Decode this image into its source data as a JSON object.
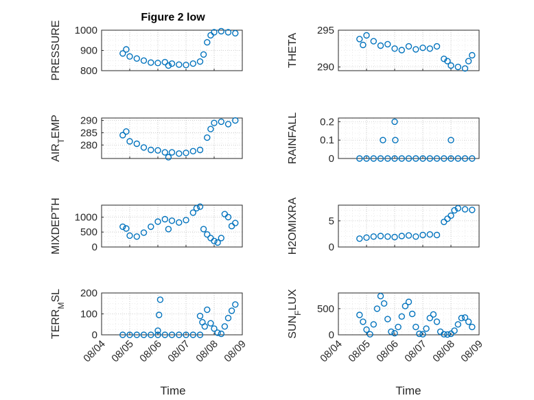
{
  "figure": {
    "title": "Figure 2 low",
    "marker_color": "#0072BD",
    "x_axis_label": "Time"
  },
  "chart_data": [
    {
      "type": "scatter",
      "name": "PRESSURE",
      "ylabel": "PRESSURE",
      "ylim": [
        800,
        1000
      ],
      "yticks": [
        800,
        900,
        1000
      ],
      "xlim": [
        "08/04",
        "08/09"
      ],
      "xticks": [
        "08/04",
        "08/05",
        "08/06",
        "08/07",
        "08/08",
        "08/09"
      ],
      "grid": true,
      "x": [
        "08/04 18:00",
        "08/04 21:00",
        "08/05 00:00",
        "08/05 06:00",
        "08/05 12:00",
        "08/05 18:00",
        "08/06 00:00",
        "08/06 06:00",
        "08/06 09:00",
        "08/06 12:00",
        "08/06 18:00",
        "08/07 00:00",
        "08/07 06:00",
        "08/07 12:00",
        "08/07 15:00",
        "08/07 18:00",
        "08/07 21:00",
        "08/08 00:00",
        "08/08 06:00",
        "08/08 12:00",
        "08/08 18:00"
      ],
      "y": [
        885,
        905,
        870,
        860,
        850,
        840,
        838,
        842,
        825,
        835,
        830,
        828,
        835,
        845,
        880,
        940,
        975,
        990,
        995,
        990,
        985
      ]
    },
    {
      "type": "scatter",
      "name": "THETA",
      "ylabel": "THETA",
      "ylim": [
        289.5,
        295
      ],
      "yticks": [
        290,
        295
      ],
      "xlim": [
        "08/04",
        "08/09"
      ],
      "xticks": [
        "08/04",
        "08/05",
        "08/06",
        "08/07",
        "08/08",
        "08/09"
      ],
      "grid": true,
      "x": [
        "08/04 18:00",
        "08/04 21:00",
        "08/05 00:00",
        "08/05 06:00",
        "08/05 12:00",
        "08/05 18:00",
        "08/06 00:00",
        "08/06 06:00",
        "08/06 12:00",
        "08/06 18:00",
        "08/07 00:00",
        "08/07 06:00",
        "08/07 12:00",
        "08/07 18:00",
        "08/07 21:00",
        "08/08 00:00",
        "08/08 06:00",
        "08/08 12:00",
        "08/08 15:00",
        "08/08 18:00"
      ],
      "y": [
        293.8,
        293.0,
        294.3,
        293.5,
        292.9,
        293.1,
        292.5,
        292.3,
        292.8,
        292.4,
        292.6,
        292.5,
        292.8,
        291.1,
        290.8,
        290.2,
        290.0,
        289.8,
        290.8,
        291.6
      ]
    },
    {
      "type": "scatter",
      "name": "AIR_TEMP",
      "ylabel": "AIR_TEMP",
      "ylim": [
        274.5,
        291
      ],
      "yticks": [
        280,
        285,
        290
      ],
      "xlim": [
        "08/04",
        "08/09"
      ],
      "xticks": [
        "08/04",
        "08/05",
        "08/06",
        "08/07",
        "08/08",
        "08/09"
      ],
      "grid": true,
      "x": [
        "08/04 18:00",
        "08/04 21:00",
        "08/05 00:00",
        "08/05 06:00",
        "08/05 12:00",
        "08/05 18:00",
        "08/06 00:00",
        "08/06 06:00",
        "08/06 09:00",
        "08/06 12:00",
        "08/06 18:00",
        "08/07 00:00",
        "08/07 06:00",
        "08/07 12:00",
        "08/07 18:00",
        "08/07 21:00",
        "08/08 00:00",
        "08/08 06:00",
        "08/08 12:00",
        "08/08 18:00"
      ],
      "y": [
        284.0,
        285.5,
        281.5,
        280.5,
        279.0,
        278.0,
        277.8,
        277.0,
        275.0,
        277.0,
        276.5,
        276.8,
        277.5,
        278.0,
        283.0,
        286.5,
        289.0,
        289.5,
        288.5,
        290.0
      ]
    },
    {
      "type": "scatter",
      "name": "RAINFALL",
      "ylabel": "RAINFALL",
      "ylim": [
        0,
        0.22
      ],
      "yticks": [
        0,
        0.1,
        0.2
      ],
      "xlim": [
        "08/04",
        "08/09"
      ],
      "xticks": [
        "08/04",
        "08/05",
        "08/06",
        "08/07",
        "08/08",
        "08/09"
      ],
      "grid": true,
      "x": [
        "08/04 18:00",
        "08/05 00:00",
        "08/05 06:00",
        "08/05 12:00",
        "08/05 18:00",
        "08/06 00:00",
        "08/06 06:00",
        "08/06 12:00",
        "08/06 18:00",
        "08/07 00:00",
        "08/07 06:00",
        "08/07 12:00",
        "08/07 18:00",
        "08/08 00:00",
        "08/08 06:00",
        "08/08 12:00",
        "08/08 18:00",
        "08/05 14:00",
        "08/06 00:00",
        "08/06 00:30",
        "08/08 00:00"
      ],
      "y": [
        0,
        0,
        0,
        0,
        0,
        0,
        0,
        0,
        0,
        0,
        0,
        0,
        0,
        0,
        0,
        0,
        0,
        0.1,
        0.2,
        0.1,
        0.1
      ]
    },
    {
      "type": "scatter",
      "name": "MIXDEPTH",
      "ylabel": "MIXDEPTH",
      "ylim": [
        0,
        1400
      ],
      "yticks": [
        0,
        500,
        1000
      ],
      "xlim": [
        "08/04",
        "08/09"
      ],
      "xticks": [
        "08/04",
        "08/05",
        "08/06",
        "08/07",
        "08/08",
        "08/09"
      ],
      "grid": true,
      "x": [
        "08/04 18:00",
        "08/04 21:00",
        "08/05 00:00",
        "08/05 06:00",
        "08/05 12:00",
        "08/05 18:00",
        "08/06 00:00",
        "08/06 06:00",
        "08/06 09:00",
        "08/06 12:00",
        "08/06 18:00",
        "08/07 00:00",
        "08/07 06:00",
        "08/07 09:00",
        "08/07 12:00",
        "08/07 15:00",
        "08/07 18:00",
        "08/07 21:00",
        "08/08 00:00",
        "08/08 03:00",
        "08/08 06:00",
        "08/08 09:00",
        "08/08 12:00",
        "08/08 15:00",
        "08/08 18:00"
      ],
      "y": [
        680,
        620,
        380,
        350,
        480,
        680,
        850,
        930,
        600,
        880,
        820,
        900,
        1150,
        1300,
        1350,
        600,
        420,
        300,
        200,
        150,
        300,
        1100,
        1000,
        700,
        800
      ]
    },
    {
      "type": "scatter",
      "name": "H2OMIXRA",
      "ylabel": "H2OMIXRA",
      "ylim": [
        0,
        8
      ],
      "yticks": [
        0,
        5
      ],
      "xlim": [
        "08/04",
        "08/09"
      ],
      "xticks": [
        "08/04",
        "08/05",
        "08/06",
        "08/07",
        "08/08",
        "08/09"
      ],
      "grid": true,
      "x": [
        "08/04 18:00",
        "08/05 00:00",
        "08/05 06:00",
        "08/05 12:00",
        "08/05 18:00",
        "08/06 00:00",
        "08/06 06:00",
        "08/06 12:00",
        "08/06 18:00",
        "08/07 00:00",
        "08/07 06:00",
        "08/07 12:00",
        "08/07 18:00",
        "08/07 21:00",
        "08/08 00:00",
        "08/08 03:00",
        "08/08 06:00",
        "08/08 12:00",
        "08/08 18:00"
      ],
      "y": [
        1.6,
        1.8,
        2.0,
        2.1,
        2.0,
        1.9,
        2.1,
        2.2,
        2.0,
        2.3,
        2.4,
        2.3,
        4.8,
        5.4,
        6.0,
        7.0,
        7.4,
        7.2,
        7.1
      ]
    },
    {
      "type": "scatter",
      "name": "TERR_MSL",
      "ylabel": "TERR_MSL",
      "ylim": [
        0,
        200
      ],
      "yticks": [
        0,
        100,
        200
      ],
      "xlim": [
        "08/04",
        "08/09"
      ],
      "xticks": [
        "08/04",
        "08/05",
        "08/06",
        "08/07",
        "08/08",
        "08/09"
      ],
      "grid": true,
      "x": [
        "08/04 18:00",
        "08/05 00:00",
        "08/05 06:00",
        "08/05 12:00",
        "08/05 18:00",
        "08/06 00:00",
        "08/06 06:00",
        "08/06 12:00",
        "08/06 18:00",
        "08/07 00:00",
        "08/07 06:00",
        "08/07 12:00",
        "08/06 00:00",
        "08/06 01:00",
        "08/06 02:00",
        "08/07 12:00",
        "08/07 14:00",
        "08/07 16:00",
        "08/07 18:00",
        "08/07 21:00",
        "08/08 00:00",
        "08/08 03:00",
        "08/08 06:00",
        "08/08 09:00",
        "08/08 12:00",
        "08/08 15:00",
        "08/08 18:00"
      ],
      "y": [
        0,
        0,
        0,
        0,
        0,
        0,
        0,
        0,
        0,
        0,
        0,
        0,
        20,
        95,
        168,
        90,
        60,
        40,
        120,
        55,
        30,
        10,
        5,
        40,
        80,
        115,
        145
      ]
    },
    {
      "type": "scatter",
      "name": "SUN_FLUX",
      "ylabel": "SUN_FLUX",
      "ylim": [
        0,
        800
      ],
      "yticks": [
        0,
        500
      ],
      "xlim": [
        "08/04",
        "08/09"
      ],
      "xticks": [
        "08/04",
        "08/05",
        "08/06",
        "08/07",
        "08/08",
        "08/09"
      ],
      "grid": true,
      "x": [
        "08/04 18:00",
        "08/04 21:00",
        "08/05 00:00",
        "08/05 03:00",
        "08/05 06:00",
        "08/05 09:00",
        "08/05 12:00",
        "08/05 15:00",
        "08/05 18:00",
        "08/05 21:00",
        "08/06 00:00",
        "08/06 03:00",
        "08/06 06:00",
        "08/06 09:00",
        "08/06 12:00",
        "08/06 15:00",
        "08/06 18:00",
        "08/06 21:00",
        "08/07 00:00",
        "08/07 03:00",
        "08/07 06:00",
        "08/07 09:00",
        "08/07 12:00",
        "08/07 15:00",
        "08/07 18:00",
        "08/07 21:00",
        "08/08 00:00",
        "08/08 03:00",
        "08/08 06:00",
        "08/08 09:00",
        "08/08 12:00",
        "08/08 15:00",
        "08/08 18:00"
      ],
      "y": [
        380,
        250,
        100,
        10,
        200,
        500,
        740,
        600,
        300,
        60,
        30,
        150,
        350,
        550,
        630,
        400,
        150,
        20,
        10,
        120,
        320,
        390,
        250,
        60,
        10,
        5,
        20,
        80,
        200,
        320,
        330,
        250,
        150
      ]
    }
  ]
}
